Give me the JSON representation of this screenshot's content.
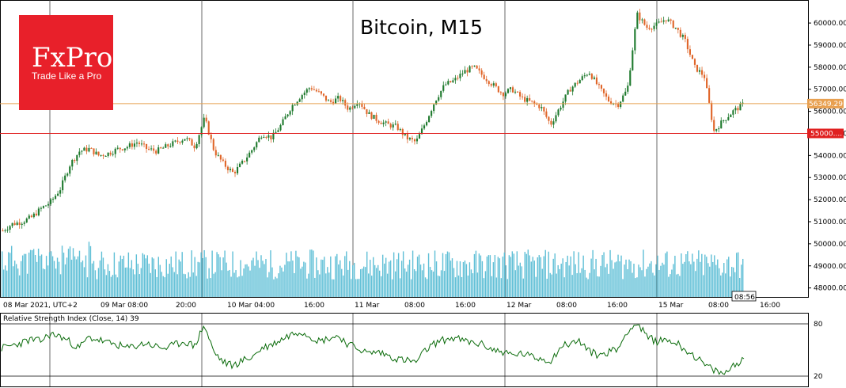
{
  "logo": {
    "brand": "FxPro",
    "tagline": "Trade Like a Pro",
    "color": "#e8202a"
  },
  "chart_data": {
    "type": "candlestick",
    "title": "Bitcoin, M15",
    "colors": {
      "up": "#1f7a2e",
      "down": "#e0662a",
      "volume": "#5fbfd6",
      "rsi": "#0a6b0a",
      "price_line": "#e8a050",
      "level_line": "#e02020"
    },
    "y_ticks": [
      "60000.00",
      "59000.00",
      "58000.00",
      "57000.00",
      "56000.00",
      "55000.00",
      "54000.00",
      "53000.00",
      "52000.00",
      "51000.00",
      "50000.00",
      "49000.00",
      "48000.00"
    ],
    "y_range": [
      47700,
      60900
    ],
    "x_ticks": [
      "08 Mar 2021, UTC+2",
      "09 Mar 08:00",
      "20:00",
      "10 Mar 04:00",
      "16:00",
      "11 Mar",
      "08:00",
      "16:00",
      "12 Mar",
      "08:00",
      "16:00",
      "15 Mar",
      "08:00",
      "16:00"
    ],
    "current_price": {
      "value": 56349.29,
      "label": "56349.29"
    },
    "level": {
      "value": 55000,
      "label": "55000...."
    },
    "current_time": "08:56",
    "price_path": [
      50600,
      50900,
      51000,
      51200,
      51600,
      51900,
      52500,
      53600,
      54200,
      54300,
      54000,
      54100,
      54300,
      54400,
      54600,
      54300,
      54200,
      54400,
      54600,
      54800,
      54400,
      55700,
      54200,
      53600,
      53200,
      53700,
      54300,
      55000,
      54800,
      55400,
      56200,
      56700,
      57100,
      56800,
      56400,
      56600,
      56100,
      56500,
      55900,
      55600,
      55400,
      55300,
      54800,
      54600,
      55500,
      56500,
      57200,
      57400,
      57800,
      58000,
      57600,
      57200,
      56800,
      57000,
      56600,
      56400,
      56200,
      55400,
      56200,
      57000,
      57400,
      57800,
      57100,
      56500,
      56300,
      57000,
      60400,
      59800,
      59900,
      60200,
      59800,
      59200,
      58000,
      57600,
      55100,
      55600,
      56000,
      56300
    ],
    "rsi": {
      "label": "Relative Strength Index (Close, 14) 39",
      "ticks": [
        "80",
        "20"
      ],
      "path": [
        52,
        55,
        58,
        62,
        60,
        68,
        66,
        60,
        52,
        64,
        62,
        58,
        56,
        52,
        55,
        58,
        54,
        52,
        56,
        60,
        54,
        79,
        48,
        36,
        32,
        38,
        42,
        52,
        56,
        62,
        68,
        72,
        66,
        60,
        64,
        66,
        56,
        52,
        46,
        48,
        44,
        40,
        38,
        36,
        50,
        58,
        62,
        64,
        60,
        58,
        56,
        50,
        48,
        44,
        46,
        42,
        40,
        38,
        54,
        58,
        60,
        48,
        44,
        48,
        52,
        74,
        80,
        64,
        60,
        62,
        58,
        50,
        42,
        32,
        26,
        22,
        34,
        39
      ]
    }
  }
}
